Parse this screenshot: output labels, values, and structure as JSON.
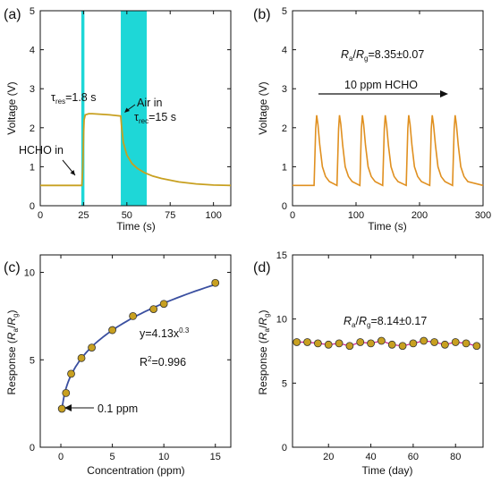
{
  "chart_data": [
    {
      "panel": "(a)",
      "type": "line",
      "xlabel": "Time (s)",
      "ylabel": "Voltage (V)",
      "xlim": [
        0,
        110
      ],
      "ylim": [
        0,
        5
      ],
      "xticks": [
        0,
        25,
        50,
        75,
        100
      ],
      "yticks": [
        0,
        1,
        2,
        3,
        4,
        5
      ],
      "line_color": "#c8a020",
      "highlight_color": "#1ed7d7",
      "highlights": [
        [
          23.7,
          25.5
        ],
        [
          46.5,
          61.5
        ]
      ],
      "series": [
        {
          "x": [
            0,
            10,
            20,
            24,
            24.6,
            25.0,
            25.3,
            26,
            28,
            30,
            40,
            46.5,
            47,
            48,
            50,
            53,
            56,
            60,
            65,
            70,
            80,
            90,
            100,
            110
          ],
          "y": [
            0.52,
            0.52,
            0.52,
            0.52,
            1.0,
            1.8,
            2.2,
            2.33,
            2.36,
            2.36,
            2.33,
            2.3,
            2.0,
            1.62,
            1.3,
            1.08,
            0.96,
            0.85,
            0.76,
            0.7,
            0.61,
            0.56,
            0.53,
            0.52
          ]
        }
      ],
      "annotations": {
        "hcho_in": "HCHO in",
        "tau_res": "τres=1.8 s",
        "air_in": "Air in",
        "tau_rec": "τrec=15 s"
      }
    },
    {
      "panel": "(b)",
      "type": "line",
      "xlabel": "Time (s)",
      "ylabel": "Voltage (V)",
      "xlim": [
        0,
        300
      ],
      "ylim": [
        0,
        5
      ],
      "xticks": [
        0,
        100,
        200,
        300
      ],
      "yticks": [
        0,
        1,
        2,
        3,
        4,
        5
      ],
      "line_color": "#e09020",
      "baseline": 0.52,
      "peak_height": 2.32,
      "peak_times": [
        38,
        74,
        110,
        146,
        183,
        220,
        256
      ],
      "annotations": {
        "ratio": "Ra/Rg=8.35±0.07",
        "arrow_label": "10 ppm HCHO"
      }
    },
    {
      "panel": "(c)",
      "type": "scatter",
      "xlabel": "Concentration (ppm)",
      "ylabel": "Response (Ra/Rg)",
      "xlim": [
        -2,
        16.5
      ],
      "ylim": [
        0,
        11
      ],
      "xticks": [
        0,
        5,
        10,
        15
      ],
      "yticks": [
        0,
        5,
        10
      ],
      "point_color": "#c8a020",
      "fit_color": "#3a4fa0",
      "fit": {
        "a": 4.13,
        "b": 0.3
      },
      "x": [
        0.1,
        0.5,
        1,
        2,
        3,
        5,
        7,
        9,
        10,
        15
      ],
      "y": [
        2.2,
        3.1,
        4.2,
        5.1,
        5.7,
        6.7,
        7.5,
        7.9,
        8.2,
        9.4
      ],
      "annotations": {
        "equation": "y=4.13x0.3",
        "r2": "R2=0.996",
        "low": "0.1 ppm"
      }
    },
    {
      "panel": "(d)",
      "type": "line",
      "xlabel": "Time (day)",
      "ylabel": "Response (Ra/Rg)",
      "xlim": [
        3,
        93
      ],
      "ylim": [
        0,
        15
      ],
      "xticks": [
        20,
        40,
        60,
        80
      ],
      "yticks": [
        0,
        5,
        10,
        15
      ],
      "point_color": "#c8a020",
      "line_color": "#d01a8a",
      "x": [
        5,
        10,
        15,
        20,
        25,
        30,
        35,
        40,
        45,
        50,
        55,
        60,
        65,
        70,
        75,
        80,
        85,
        90
      ],
      "y": [
        8.2,
        8.2,
        8.1,
        8.0,
        8.1,
        7.9,
        8.2,
        8.1,
        8.3,
        8.0,
        7.9,
        8.1,
        8.3,
        8.2,
        8.0,
        8.2,
        8.1,
        7.9
      ],
      "annotations": {
        "ratio": "Ra/Rg=8.14±0.17"
      }
    }
  ]
}
